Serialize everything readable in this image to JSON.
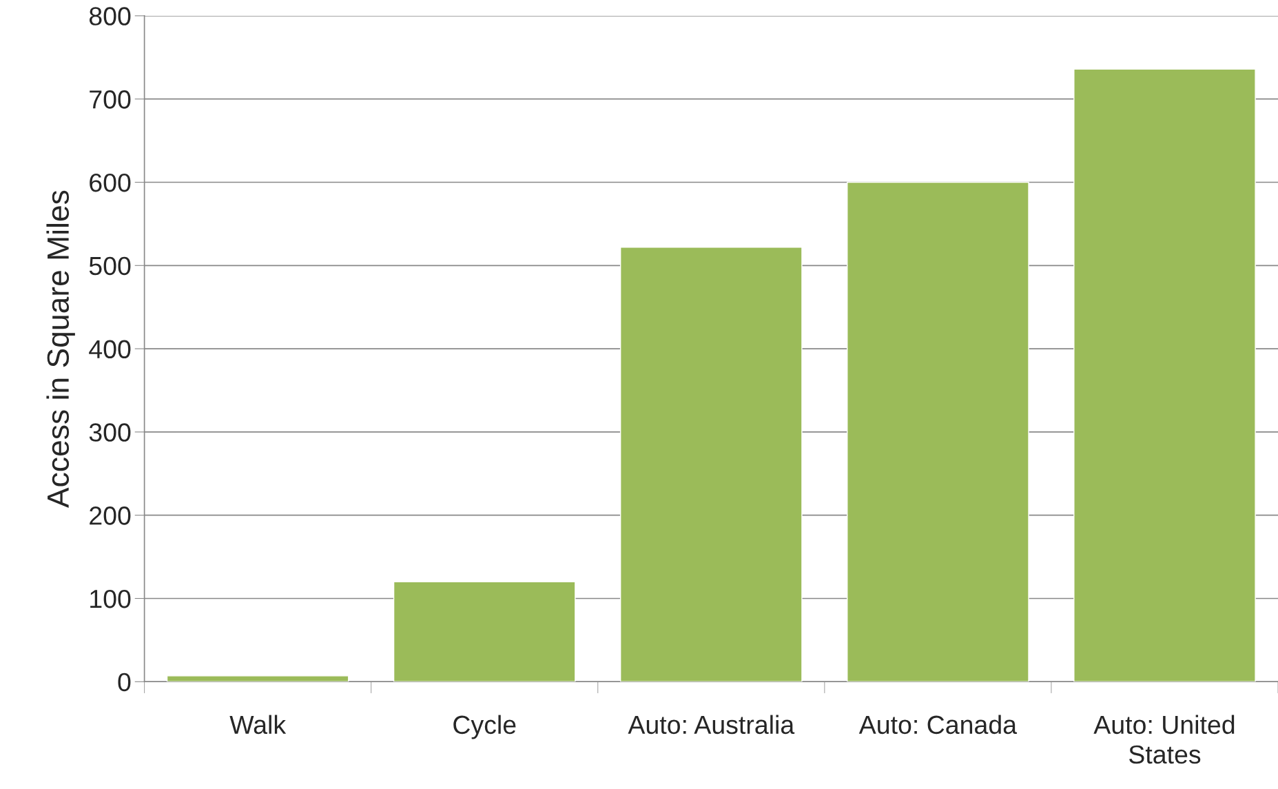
{
  "chart_data": {
    "type": "bar",
    "ylabel": "Access in Square Miles",
    "categories": [
      "Walk",
      "Cycle",
      "Auto: Australia",
      "Auto: Canada",
      "Auto: United States"
    ],
    "values": [
      7,
      120,
      522,
      600,
      736
    ],
    "color": "#9bbb59",
    "ylim": [
      0,
      800
    ],
    "yticks": [
      0,
      100,
      200,
      300,
      400,
      500,
      600,
      700,
      800
    ],
    "grid": "y"
  }
}
